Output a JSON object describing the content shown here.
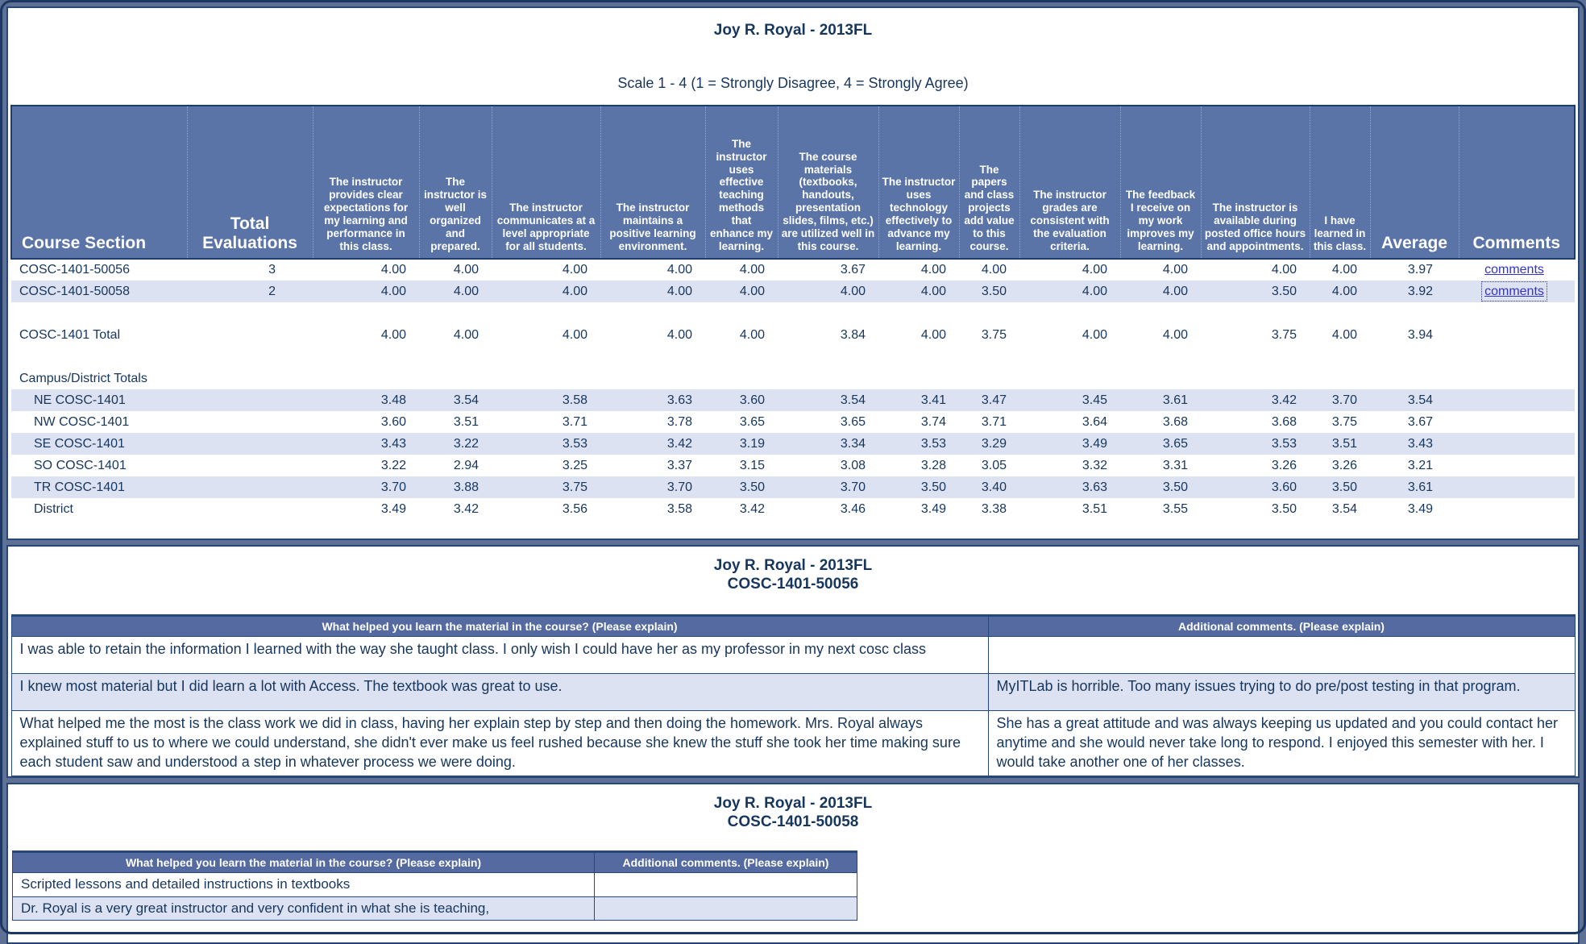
{
  "colors": {
    "frame": "#5E7195",
    "panel_border": "#25477A",
    "header_bg": "#5B74A8",
    "stripe": "#DCE2F1",
    "text": "#17365D",
    "link": "#3333CC"
  },
  "report": {
    "title": "Joy R. Royal - 2013FL",
    "scale_note": "Scale 1 - 4 (1 = Strongly Disagree, 4 = Strongly Agree)"
  },
  "main_table": {
    "headers": {
      "course_section": "Course Section",
      "total_evaluations": "Total Evaluations",
      "average": "Average",
      "comments": "Comments"
    },
    "questions": [
      "The instructor provides clear expectations for my learning and performance in this class.",
      "The instructor is well organized and prepared.",
      "The instructor communicates at a level appropriate for all students.",
      "The instructor maintains a positive learning environment.",
      "The instructor uses effective teaching methods that enhance my learning.",
      "The course materials (textbooks, handouts, presentation slides, films, etc.) are utilized well in this course.",
      "The instructor uses technology effectively to advance my learning.",
      "The papers and class projects add value to this course.",
      "The instructor grades are consistent with the evaluation criteria.",
      "The feedback I receive on my work improves my learning.",
      "The instructor is available during posted office hours and appointments.",
      "I have learned in this class."
    ],
    "comments_link_label": "comments",
    "rows": [
      {
        "label": "COSC-1401-50056",
        "total": "3",
        "values": [
          "4.00",
          "4.00",
          "4.00",
          "4.00",
          "4.00",
          "3.67",
          "4.00",
          "4.00",
          "4.00",
          "4.00",
          "4.00",
          "4.00"
        ],
        "average": "3.97",
        "comments_focused": false
      },
      {
        "label": "COSC-1401-50058",
        "total": "2",
        "values": [
          "4.00",
          "4.00",
          "4.00",
          "4.00",
          "4.00",
          "4.00",
          "4.00",
          "3.50",
          "4.00",
          "4.00",
          "3.50",
          "4.00"
        ],
        "average": "3.92",
        "comments_focused": true
      }
    ],
    "total_row": {
      "label": "COSC-1401 Total",
      "values": [
        "4.00",
        "4.00",
        "4.00",
        "4.00",
        "4.00",
        "3.84",
        "4.00",
        "3.75",
        "4.00",
        "4.00",
        "3.75",
        "4.00"
      ],
      "average": "3.94"
    },
    "campus_header": "Campus/District Totals",
    "campus_rows": [
      {
        "label": "NE COSC-1401",
        "values": [
          "3.48",
          "3.54",
          "3.58",
          "3.63",
          "3.60",
          "3.54",
          "3.41",
          "3.47",
          "3.45",
          "3.61",
          "3.42",
          "3.70"
        ],
        "average": "3.54"
      },
      {
        "label": "NW COSC-1401",
        "values": [
          "3.60",
          "3.51",
          "3.71",
          "3.78",
          "3.65",
          "3.65",
          "3.74",
          "3.71",
          "3.64",
          "3.68",
          "3.68",
          "3.75"
        ],
        "average": "3.67"
      },
      {
        "label": "SE COSC-1401",
        "values": [
          "3.43",
          "3.22",
          "3.53",
          "3.42",
          "3.19",
          "3.34",
          "3.53",
          "3.29",
          "3.49",
          "3.65",
          "3.53",
          "3.51"
        ],
        "average": "3.43"
      },
      {
        "label": "SO COSC-1401",
        "values": [
          "3.22",
          "2.94",
          "3.25",
          "3.37",
          "3.15",
          "3.08",
          "3.28",
          "3.05",
          "3.32",
          "3.31",
          "3.26",
          "3.26"
        ],
        "average": "3.21"
      },
      {
        "label": "TR COSC-1401",
        "values": [
          "3.70",
          "3.88",
          "3.75",
          "3.70",
          "3.50",
          "3.70",
          "3.50",
          "3.40",
          "3.63",
          "3.50",
          "3.60",
          "3.50"
        ],
        "average": "3.61"
      },
      {
        "label": "District",
        "values": [
          "3.49",
          "3.42",
          "3.56",
          "3.58",
          "3.42",
          "3.46",
          "3.49",
          "3.38",
          "3.51",
          "3.55",
          "3.50",
          "3.54"
        ],
        "average": "3.49"
      }
    ]
  },
  "section_50056": {
    "title": "Joy R. Royal - 2013FL",
    "subtitle": "COSC-1401-50056",
    "col_helped": "What helped you learn the material in the course? (Please explain)",
    "col_additional": "Additional comments. (Please explain)",
    "rows": [
      {
        "helped": "I was able to retain the information I learned with the way she taught class. I only wish I could have her as my professor in my next cosc class",
        "additional": ""
      },
      {
        "helped": "I knew most material but I did learn a lot with Access. The textbook was great to use.",
        "additional": "MyITLab is horrible. Too many issues trying to do pre/post testing in that program."
      },
      {
        "helped": "What helped me the most is the class work we did in class, having her explain step by step and then doing the homework. Mrs. Royal always explained stuff to us to where we could understand, she didn't ever make us feel rushed because she knew the stuff she took her time making sure each student saw and understood a step in whatever process we were doing.",
        "additional": "She has a great attitude and was always keeping us updated and you could contact her anytime and she would never take long to respond. I enjoyed this semester with her. I would take another one of her classes."
      }
    ]
  },
  "section_50058": {
    "title": "Joy R. Royal - 2013FL",
    "subtitle": "COSC-1401-50058",
    "col_helped": "What helped you learn the material in the course? (Please explain)",
    "col_additional": "Additional comments. (Please explain)",
    "rows": [
      {
        "helped": "Scripted lessons and detailed instructions in textbooks",
        "additional": ""
      },
      {
        "helped": "Dr. Royal is a very great instructor and very confident in what she is teaching,",
        "additional": ""
      }
    ]
  }
}
